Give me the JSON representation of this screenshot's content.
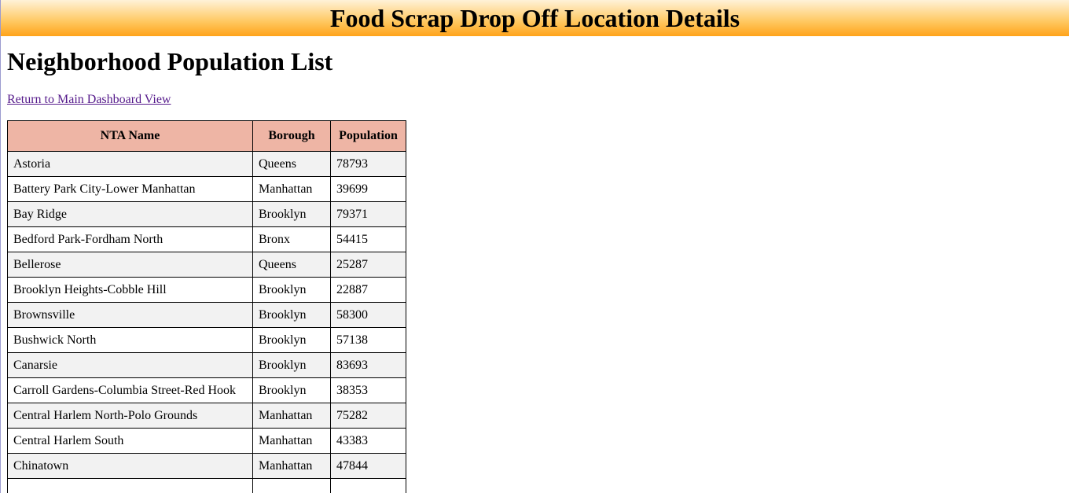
{
  "banner": {
    "title": "Food Scrap Drop Off Location Details"
  },
  "page": {
    "title": "Neighborhood Population List",
    "dashboard_link": "Return to Main Dashboard View"
  },
  "table": {
    "headers": [
      "NTA Name",
      "Borough",
      "Population"
    ],
    "rows": [
      [
        "Astoria",
        "Queens",
        "78793"
      ],
      [
        "Battery Park City-Lower Manhattan",
        "Manhattan",
        "39699"
      ],
      [
        "Bay Ridge",
        "Brooklyn",
        "79371"
      ],
      [
        "Bedford Park-Fordham North",
        "Bronx",
        "54415"
      ],
      [
        "Bellerose",
        "Queens",
        "25287"
      ],
      [
        "Brooklyn Heights-Cobble Hill",
        "Brooklyn",
        "22887"
      ],
      [
        "Brownsville",
        "Brooklyn",
        "58300"
      ],
      [
        "Bushwick North",
        "Brooklyn",
        "57138"
      ],
      [
        "Canarsie",
        "Brooklyn",
        "83693"
      ],
      [
        "Carroll Gardens-Columbia Street-Red Hook",
        "Brooklyn",
        "38353"
      ],
      [
        "Central Harlem North-Polo Grounds",
        "Manhattan",
        "75282"
      ],
      [
        "Central Harlem South",
        "Manhattan",
        "43383"
      ],
      [
        "Chinatown",
        "Manhattan",
        "47844"
      ],
      [
        "",
        "",
        ""
      ]
    ]
  },
  "colors": {
    "banner_bottom": "#ffa31a",
    "banner_top": "#fff2d8",
    "header_bg": "#eeb5a5",
    "row_alt_bg": "#f2f2f2",
    "link": "#551a8b"
  }
}
